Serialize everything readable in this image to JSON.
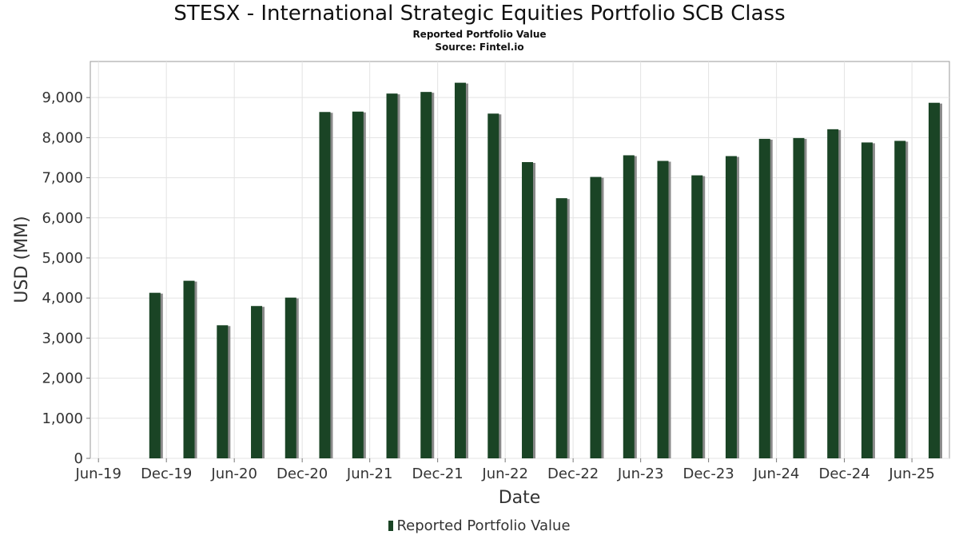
{
  "chart_data": {
    "type": "bar",
    "title": "STESX - International Strategic Equities Portfolio SCB Class",
    "subtitle": "Reported Portfolio Value",
    "source": "Source: Fintel.io",
    "xlabel": "Date",
    "ylabel": "USD (MM)",
    "ylim": [
      0,
      9900
    ],
    "yticks": [
      0,
      1000,
      2000,
      3000,
      4000,
      5000,
      6000,
      7000,
      8000,
      9000
    ],
    "ytick_labels": [
      "0",
      "1,000",
      "2,000",
      "3,000",
      "4,000",
      "5,000",
      "6,000",
      "7,000",
      "8,000",
      "9,000"
    ],
    "xlim": [
      "2019-05-10",
      "2025-09-10"
    ],
    "xticks": [
      {
        "date": "2019-06-01",
        "label": "Jun-19"
      },
      {
        "date": "2019-12-01",
        "label": "Dec-19"
      },
      {
        "date": "2020-06-01",
        "label": "Jun-20"
      },
      {
        "date": "2020-12-01",
        "label": "Dec-20"
      },
      {
        "date": "2021-06-01",
        "label": "Jun-21"
      },
      {
        "date": "2021-12-01",
        "label": "Dec-21"
      },
      {
        "date": "2022-06-01",
        "label": "Jun-22"
      },
      {
        "date": "2022-12-01",
        "label": "Dec-22"
      },
      {
        "date": "2023-06-01",
        "label": "Jun-23"
      },
      {
        "date": "2023-12-01",
        "label": "Dec-23"
      },
      {
        "date": "2024-06-01",
        "label": "Jun-24"
      },
      {
        "date": "2024-12-01",
        "label": "Dec-24"
      },
      {
        "date": "2025-06-01",
        "label": "Jun-25"
      }
    ],
    "grid": true,
    "legend_position": "bottom",
    "series": [
      {
        "name": "Reported Portfolio Value",
        "color": "#1a4425",
        "points": [
          {
            "x": "2019-10-31",
            "y": 4130
          },
          {
            "x": "2020-01-31",
            "y": 4430
          },
          {
            "x": "2020-04-30",
            "y": 3320
          },
          {
            "x": "2020-07-31",
            "y": 3800
          },
          {
            "x": "2020-10-31",
            "y": 4010
          },
          {
            "x": "2021-01-31",
            "y": 8640
          },
          {
            "x": "2021-04-30",
            "y": 8650
          },
          {
            "x": "2021-07-31",
            "y": 9100
          },
          {
            "x": "2021-10-31",
            "y": 9140
          },
          {
            "x": "2022-01-31",
            "y": 9370
          },
          {
            "x": "2022-04-30",
            "y": 8600
          },
          {
            "x": "2022-07-31",
            "y": 7390
          },
          {
            "x": "2022-10-31",
            "y": 6490
          },
          {
            "x": "2023-01-31",
            "y": 7020
          },
          {
            "x": "2023-04-30",
            "y": 7560
          },
          {
            "x": "2023-07-31",
            "y": 7420
          },
          {
            "x": "2023-10-31",
            "y": 7060
          },
          {
            "x": "2024-01-31",
            "y": 7540
          },
          {
            "x": "2024-04-30",
            "y": 7970
          },
          {
            "x": "2024-07-31",
            "y": 7990
          },
          {
            "x": "2024-10-31",
            "y": 8210
          },
          {
            "x": "2025-01-31",
            "y": 7880
          },
          {
            "x": "2025-04-30",
            "y": 7920
          },
          {
            "x": "2025-07-31",
            "y": 8870
          }
        ]
      }
    ]
  }
}
